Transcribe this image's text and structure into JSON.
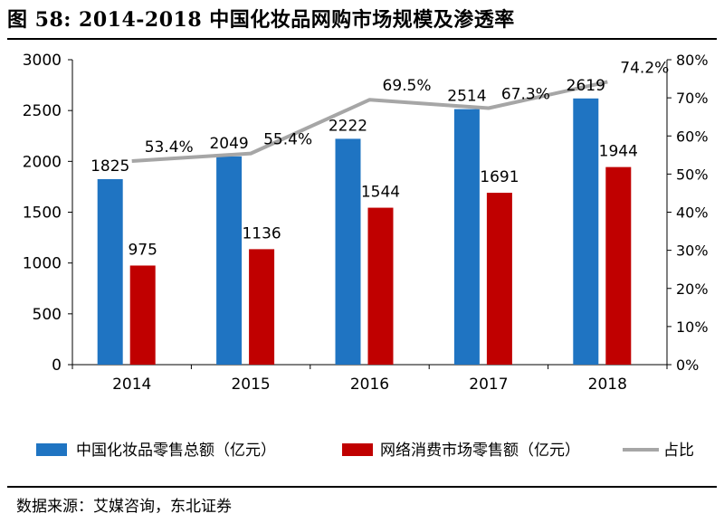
{
  "figure_title": "图 58:  2014-2018 中国化妆品网购市场规模及渗透率",
  "source_note": "数据来源：艾媒咨询，东北证券",
  "colors": {
    "blue": "#1F74C2",
    "red": "#C00000",
    "gray": "#A6A6A6"
  },
  "chart_data": {
    "type": "bar",
    "title": "",
    "categories": [
      "2014",
      "2015",
      "2016",
      "2017",
      "2018"
    ],
    "series": [
      {
        "name": "中国化妆品零售总额（亿元）",
        "type": "bar",
        "axis": "left",
        "values": [
          1825,
          2049,
          2222,
          2514,
          2619
        ],
        "labels": [
          "1825",
          "2049",
          "2222",
          "2514",
          "2619"
        ]
      },
      {
        "name": "网络消费市场零售额（亿元）",
        "type": "bar",
        "axis": "left",
        "values": [
          975,
          1136,
          1544,
          1691,
          1944
        ],
        "labels": [
          "975",
          "1136",
          "1544",
          "1691",
          "1944"
        ]
      },
      {
        "name": "占比",
        "type": "line",
        "axis": "right",
        "values": [
          53.4,
          55.4,
          69.5,
          67.3,
          74.2
        ],
        "labels": [
          "53.4%",
          "55.4%",
          "69.5%",
          "67.3%",
          "74.2%"
        ]
      }
    ],
    "y_left": {
      "lim": [
        0,
        3000
      ],
      "ticks": [
        0,
        500,
        1000,
        1500,
        2000,
        2500,
        3000
      ],
      "tick_labels": [
        "0",
        "500",
        "1000",
        "1500",
        "2000",
        "2500",
        "3000"
      ]
    },
    "y_right": {
      "lim": [
        0,
        80
      ],
      "ticks": [
        0,
        10,
        20,
        30,
        40,
        50,
        60,
        70,
        80
      ],
      "tick_labels": [
        "0%",
        "10%",
        "20%",
        "30%",
        "40%",
        "50%",
        "60%",
        "70%",
        "80%"
      ]
    },
    "grid": false,
    "legend_position": "bottom"
  }
}
